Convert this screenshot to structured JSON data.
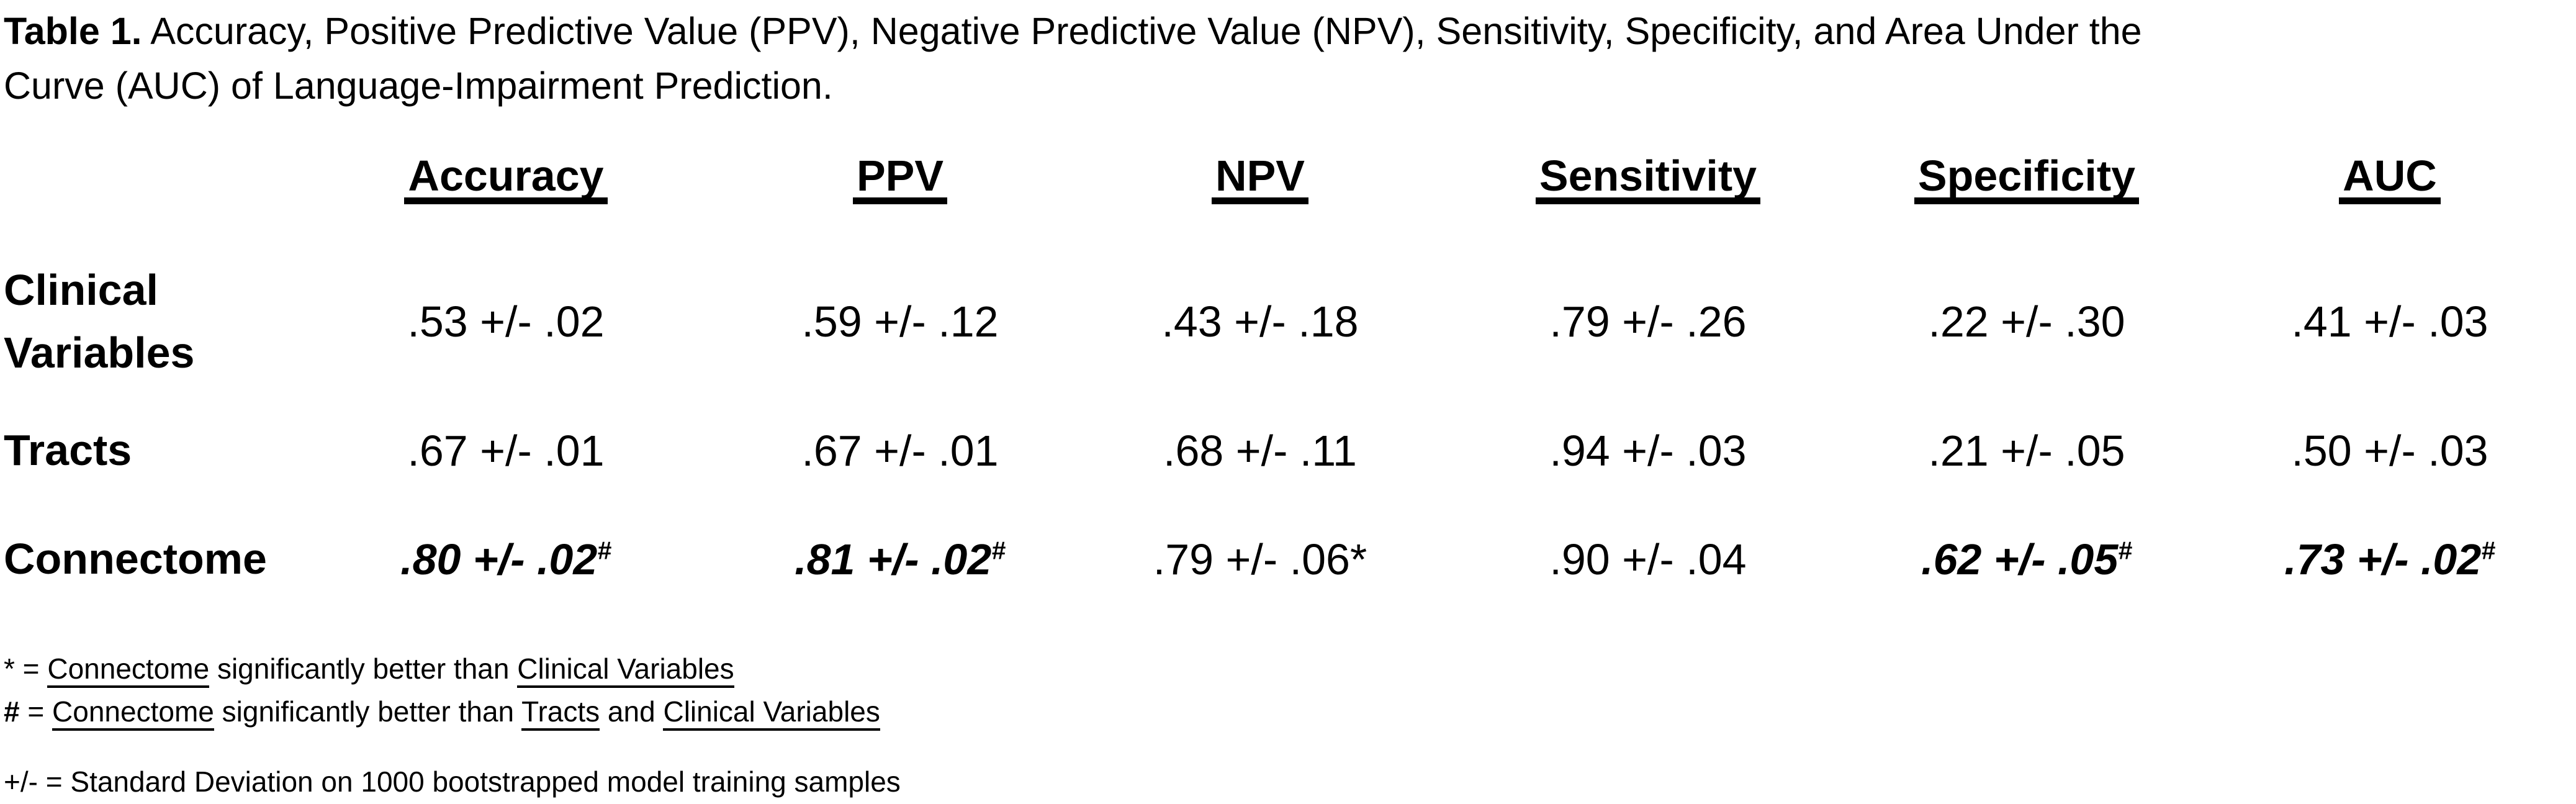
{
  "title": {
    "prefix": "Table 1.",
    "line1_rest": " Accuracy, Positive Predictive Value (PPV), Negative Predictive Value (NPV), Sensitivity, Specificity, and Area Under the",
    "line2": "Curve (AUC) of Language-Impairment Prediction."
  },
  "table": {
    "columns": [
      "Accuracy",
      "PPV",
      "NPV",
      "Sensitivity",
      "Specificity",
      "AUC"
    ],
    "rows": [
      {
        "label": "Clinical Variables",
        "cells": [
          {
            "text": ".53 +/- .02",
            "sup": "",
            "emphasis": false
          },
          {
            "text": ".59 +/- .12",
            "sup": "",
            "emphasis": false
          },
          {
            "text": ".43 +/- .18",
            "sup": "",
            "emphasis": false
          },
          {
            "text": ".79 +/- .26",
            "sup": "",
            "emphasis": false
          },
          {
            "text": ".22 +/- .30",
            "sup": "",
            "emphasis": false
          },
          {
            "text": ".41 +/- .03",
            "sup": "",
            "emphasis": false
          }
        ]
      },
      {
        "label": "Tracts",
        "cells": [
          {
            "text": ".67 +/- .01",
            "sup": "",
            "emphasis": false
          },
          {
            "text": ".67 +/- .01",
            "sup": "",
            "emphasis": false
          },
          {
            "text": ".68 +/- .11",
            "sup": "",
            "emphasis": false
          },
          {
            "text": ".94 +/- .03",
            "sup": "",
            "emphasis": false
          },
          {
            "text": ".21 +/- .05",
            "sup": "",
            "emphasis": false
          },
          {
            "text": ".50 +/- .03",
            "sup": "",
            "emphasis": false
          }
        ]
      },
      {
        "label": "Connectome",
        "cells": [
          {
            "text": ".80 +/- .02",
            "sup": "#",
            "emphasis": true
          },
          {
            "text": ".81 +/- .02",
            "sup": "#",
            "emphasis": true
          },
          {
            "text": ".79 +/- .06*",
            "sup": "",
            "emphasis": false
          },
          {
            "text": ".90 +/- .04",
            "sup": "",
            "emphasis": false
          },
          {
            "text": ".62 +/- .05",
            "sup": "#",
            "emphasis": true
          },
          {
            "text": ".73 +/- .02",
            "sup": "#",
            "emphasis": true
          }
        ]
      }
    ]
  },
  "footnotes": {
    "star": {
      "marker": "*",
      "eq": " = ",
      "term1": "Connectome",
      "mid": " significantly better than ",
      "term2": "Clinical Variables"
    },
    "hash": {
      "marker": "#",
      "eq": " = ",
      "term1": "Connectome",
      "mid": " significantly better than ",
      "term2": "Tracts",
      "and": " and ",
      "term3": "Clinical Variables"
    },
    "plusminus": "+/- = Standard Deviation on 1000 bootstrapped model training samples"
  },
  "chart_data": {
    "type": "table",
    "title": "Table 1. Accuracy, Positive Predictive Value (PPV), Negative Predictive Value (NPV), Sensitivity, Specificity, and Area Under the Curve (AUC) of Language-Impairment Prediction.",
    "columns": [
      "Accuracy",
      "PPV",
      "NPV",
      "Sensitivity",
      "Specificity",
      "AUC"
    ],
    "rows": [
      {
        "label": "Clinical Variables",
        "values": [
          ".53 +/- .02",
          ".59 +/- .12",
          ".43 +/- .18",
          ".79 +/- .26",
          ".22 +/- .30",
          ".41 +/- .03"
        ]
      },
      {
        "label": "Tracts",
        "values": [
          ".67 +/- .01",
          ".67 +/- .01",
          ".68 +/- .11",
          ".94 +/- .03",
          ".21 +/- .05",
          ".50 +/- .03"
        ]
      },
      {
        "label": "Connectome",
        "values": [
          ".80 +/- .02#",
          ".81 +/- .02#",
          ".79 +/- .06*",
          ".90 +/- .04",
          ".62 +/- .05#",
          ".73 +/- .02#"
        ]
      }
    ]
  }
}
